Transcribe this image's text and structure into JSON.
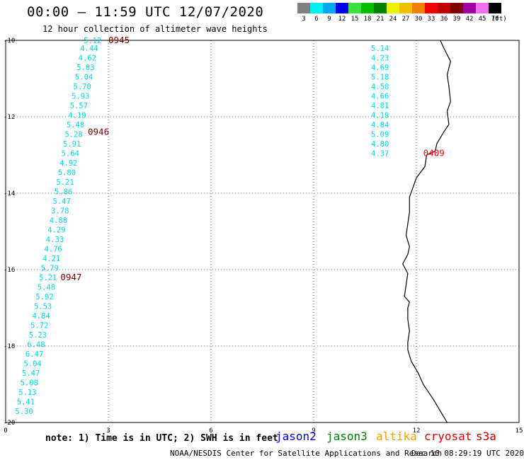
{
  "title": "00:00 – 11:59 UTC 12/07/2020",
  "subtitle": "12 hour collection of altimeter wave heights",
  "color_scale": {
    "labels": [
      "3",
      "6",
      "9",
      "12",
      "15",
      "18",
      "21",
      "24",
      "27",
      "30",
      "33",
      "36",
      "39",
      "42",
      "45",
      "70"
    ],
    "colors": [
      "#808080",
      "#00f0f0",
      "#00a8f0",
      "#0000f0",
      "#40e040",
      "#00c000",
      "#008000",
      "#f0f000",
      "#f0c000",
      "#f08000",
      "#f00000",
      "#c00000",
      "#800000",
      "#a000a0",
      "#f070f0",
      "#000000"
    ],
    "unit": "(ft)"
  },
  "axes": {
    "y_ticks": [
      "-10",
      "-12",
      "-14",
      "-16",
      "-18",
      "-20"
    ],
    "x_ticks": [
      "0",
      "3",
      "6",
      "9",
      "12",
      "15"
    ],
    "x_range": [
      0,
      15
    ],
    "y_range": [
      -20,
      -10
    ],
    "grid": "dotted"
  },
  "tracks": [
    {
      "name": "track-1",
      "color": "#00d8e8",
      "values": [
        {
          "lon": 2.8,
          "lat": -10.0,
          "v": "5.12"
        },
        {
          "lon": 2.7,
          "lat": -10.2,
          "v": "4.44"
        },
        {
          "lon": 2.65,
          "lat": -10.45,
          "v": "4.62"
        },
        {
          "lon": 2.6,
          "lat": -10.7,
          "v": "5.83"
        },
        {
          "lon": 2.55,
          "lat": -10.95,
          "v": "5.04"
        },
        {
          "lon": 2.5,
          "lat": -11.2,
          "v": "5.70"
        },
        {
          "lon": 2.45,
          "lat": -11.45,
          "v": "5.93"
        },
        {
          "lon": 2.4,
          "lat": -11.7,
          "v": "5.57"
        },
        {
          "lon": 2.35,
          "lat": -11.95,
          "v": "4.19"
        },
        {
          "lon": 2.3,
          "lat": -12.2,
          "v": "5.48"
        },
        {
          "lon": 2.25,
          "lat": -12.45,
          "v": "5.28"
        },
        {
          "lon": 2.2,
          "lat": -12.7,
          "v": "5.91"
        },
        {
          "lon": 2.15,
          "lat": -12.95,
          "v": "5.64"
        },
        {
          "lon": 2.1,
          "lat": -13.2,
          "v": "4.92"
        },
        {
          "lon": 2.05,
          "lat": -13.45,
          "v": "5.80"
        },
        {
          "lon": 2.0,
          "lat": -13.7,
          "v": "5.21"
        },
        {
          "lon": 1.95,
          "lat": -13.95,
          "v": "5.86"
        },
        {
          "lon": 1.9,
          "lat": -14.2,
          "v": "5.47"
        },
        {
          "lon": 1.85,
          "lat": -14.45,
          "v": "3.78"
        },
        {
          "lon": 1.8,
          "lat": -14.7,
          "v": "4.88"
        },
        {
          "lon": 1.75,
          "lat": -14.95,
          "v": "4.29"
        },
        {
          "lon": 1.7,
          "lat": -15.2,
          "v": "4.33"
        },
        {
          "lon": 1.65,
          "lat": -15.45,
          "v": "4.76"
        },
        {
          "lon": 1.6,
          "lat": -15.7,
          "v": "4.21"
        },
        {
          "lon": 1.55,
          "lat": -15.95,
          "v": "5.79"
        },
        {
          "lon": 1.5,
          "lat": -16.2,
          "v": "5.21"
        },
        {
          "lon": 1.45,
          "lat": -16.45,
          "v": "5.48"
        },
        {
          "lon": 1.4,
          "lat": -16.7,
          "v": "5.92"
        },
        {
          "lon": 1.35,
          "lat": -16.95,
          "v": "5.53"
        },
        {
          "lon": 1.3,
          "lat": -17.2,
          "v": "4.84"
        },
        {
          "lon": 1.25,
          "lat": -17.45,
          "v": "5.72"
        },
        {
          "lon": 1.2,
          "lat": -17.7,
          "v": "5.23"
        },
        {
          "lon": 1.15,
          "lat": -17.95,
          "v": "6.48"
        },
        {
          "lon": 1.1,
          "lat": -18.2,
          "v": "6.47"
        },
        {
          "lon": 1.05,
          "lat": -18.45,
          "v": "5.04"
        },
        {
          "lon": 1.0,
          "lat": -18.7,
          "v": "5.47"
        },
        {
          "lon": 0.95,
          "lat": -18.95,
          "v": "5.08"
        },
        {
          "lon": 0.9,
          "lat": -19.2,
          "v": "5.13"
        },
        {
          "lon": 0.85,
          "lat": -19.45,
          "v": "5.41"
        },
        {
          "lon": 0.8,
          "lat": -19.7,
          "v": "5.30"
        }
      ],
      "times": [
        {
          "lon": 3.0,
          "lat": -10.0,
          "t": "0945"
        },
        {
          "lon": 2.4,
          "lat": -12.4,
          "t": "0946"
        },
        {
          "lon": 1.6,
          "lat": -16.2,
          "t": "0947"
        }
      ],
      "time_color": "#800000"
    },
    {
      "name": "track-2",
      "color": "#00d8e8",
      "values": [
        {
          "lon": 11.2,
          "lat": -10.2,
          "v": "5.14"
        },
        {
          "lon": 11.2,
          "lat": -10.45,
          "v": "4.23"
        },
        {
          "lon": 11.2,
          "lat": -10.7,
          "v": "4.69"
        },
        {
          "lon": 11.2,
          "lat": -10.95,
          "v": "5.18"
        },
        {
          "lon": 11.2,
          "lat": -11.2,
          "v": "4.50"
        },
        {
          "lon": 11.2,
          "lat": -11.45,
          "v": "4.66"
        },
        {
          "lon": 11.2,
          "lat": -11.7,
          "v": "4.81"
        },
        {
          "lon": 11.2,
          "lat": -11.95,
          "v": "4.19"
        },
        {
          "lon": 11.2,
          "lat": -12.2,
          "v": "4.84"
        },
        {
          "lon": 11.2,
          "lat": -12.45,
          "v": "5.09"
        },
        {
          "lon": 11.2,
          "lat": -12.7,
          "v": "4.80"
        },
        {
          "lon": 11.2,
          "lat": -12.95,
          "v": "4.37"
        }
      ],
      "times": [
        {
          "lon": 12.2,
          "lat": -12.95,
          "t": "0409"
        }
      ],
      "time_color": "#ff0000"
    }
  ],
  "coastline": [
    [
      12.7,
      -10.0
    ],
    [
      12.8,
      -10.2
    ],
    [
      13.0,
      -10.55
    ],
    [
      12.9,
      -10.9
    ],
    [
      12.95,
      -11.2
    ],
    [
      13.0,
      -11.6
    ],
    [
      12.9,
      -11.85
    ],
    [
      12.95,
      -12.2
    ],
    [
      12.8,
      -12.4
    ],
    [
      12.6,
      -12.7
    ],
    [
      12.55,
      -12.9
    ],
    [
      12.3,
      -13.0
    ],
    [
      12.25,
      -13.3
    ],
    [
      12.0,
      -13.6
    ],
    [
      11.9,
      -13.85
    ],
    [
      11.8,
      -14.1
    ],
    [
      11.8,
      -14.5
    ],
    [
      11.75,
      -14.8
    ],
    [
      11.7,
      -15.1
    ],
    [
      11.8,
      -15.4
    ],
    [
      11.75,
      -15.6
    ],
    [
      11.6,
      -15.85
    ],
    [
      11.75,
      -16.1
    ],
    [
      11.7,
      -16.4
    ],
    [
      11.65,
      -16.7
    ],
    [
      11.8,
      -16.85
    ],
    [
      11.75,
      -17.0
    ],
    [
      11.75,
      -17.3
    ],
    [
      11.8,
      -17.6
    ],
    [
      11.75,
      -17.9
    ],
    [
      11.75,
      -18.1
    ],
    [
      11.85,
      -18.4
    ],
    [
      12.05,
      -18.7
    ],
    [
      12.2,
      -19.0
    ],
    [
      12.5,
      -19.4
    ],
    [
      12.7,
      -19.7
    ],
    [
      12.9,
      -20.0
    ]
  ],
  "footer_note": "note: 1) Time is in UTC; 2) SWH is in feet",
  "satellites": [
    {
      "label": "jason2",
      "color": "#0000e0"
    },
    {
      "label": "jason3",
      "color": "#008000"
    },
    {
      "label": "altika",
      "color": "#f0a000"
    },
    {
      "label": "cryosat",
      "color": "#e00000"
    },
    {
      "label": "s3a",
      "color": "#c00000"
    }
  ],
  "credit": "NOAA/NESDIS Center for Satellite Applications and Research",
  "generated": "Dec 10 08:29:19 UTC 2020"
}
